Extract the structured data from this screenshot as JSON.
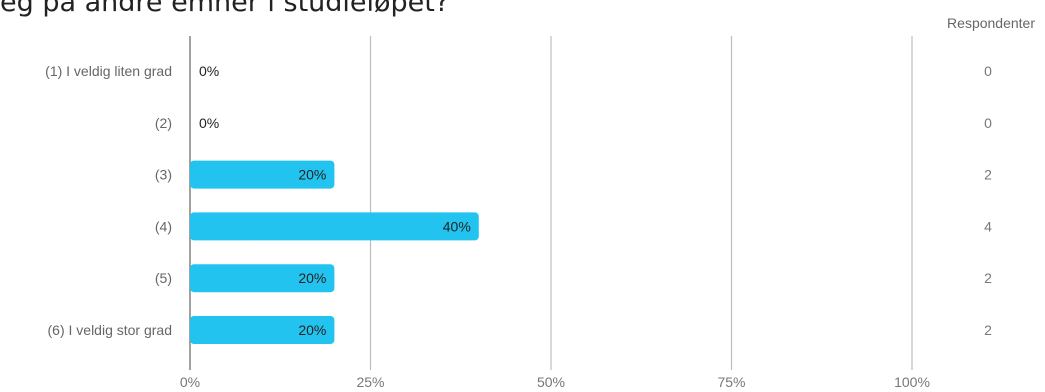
{
  "title_text": "eg på andre emner i studieløpet?",
  "respondents_header": "Respondenter",
  "colors": {
    "bar": "#22c4ef",
    "grid": "#bdbdbd",
    "axis": "#8a8a8a"
  },
  "chart_data": {
    "type": "bar",
    "orientation": "horizontal",
    "title": "eg på andre emner i studieløpet?",
    "categories": [
      "(1) I veldig liten grad",
      "(2)",
      "(3)",
      "(4)",
      "(5)",
      "(6) I veldig stor grad"
    ],
    "series": [
      {
        "values": [
          0,
          0,
          20,
          40,
          20,
          20
        ]
      }
    ],
    "value_labels": [
      "0%",
      "0%",
      "20%",
      "40%",
      "20%",
      "20%"
    ],
    "respondents": [
      0,
      0,
      2,
      4,
      2,
      2
    ],
    "x_ticks": [
      "0%",
      "25%",
      "50%",
      "75%",
      "100%"
    ],
    "xlim": [
      0,
      100
    ],
    "grid": true
  }
}
